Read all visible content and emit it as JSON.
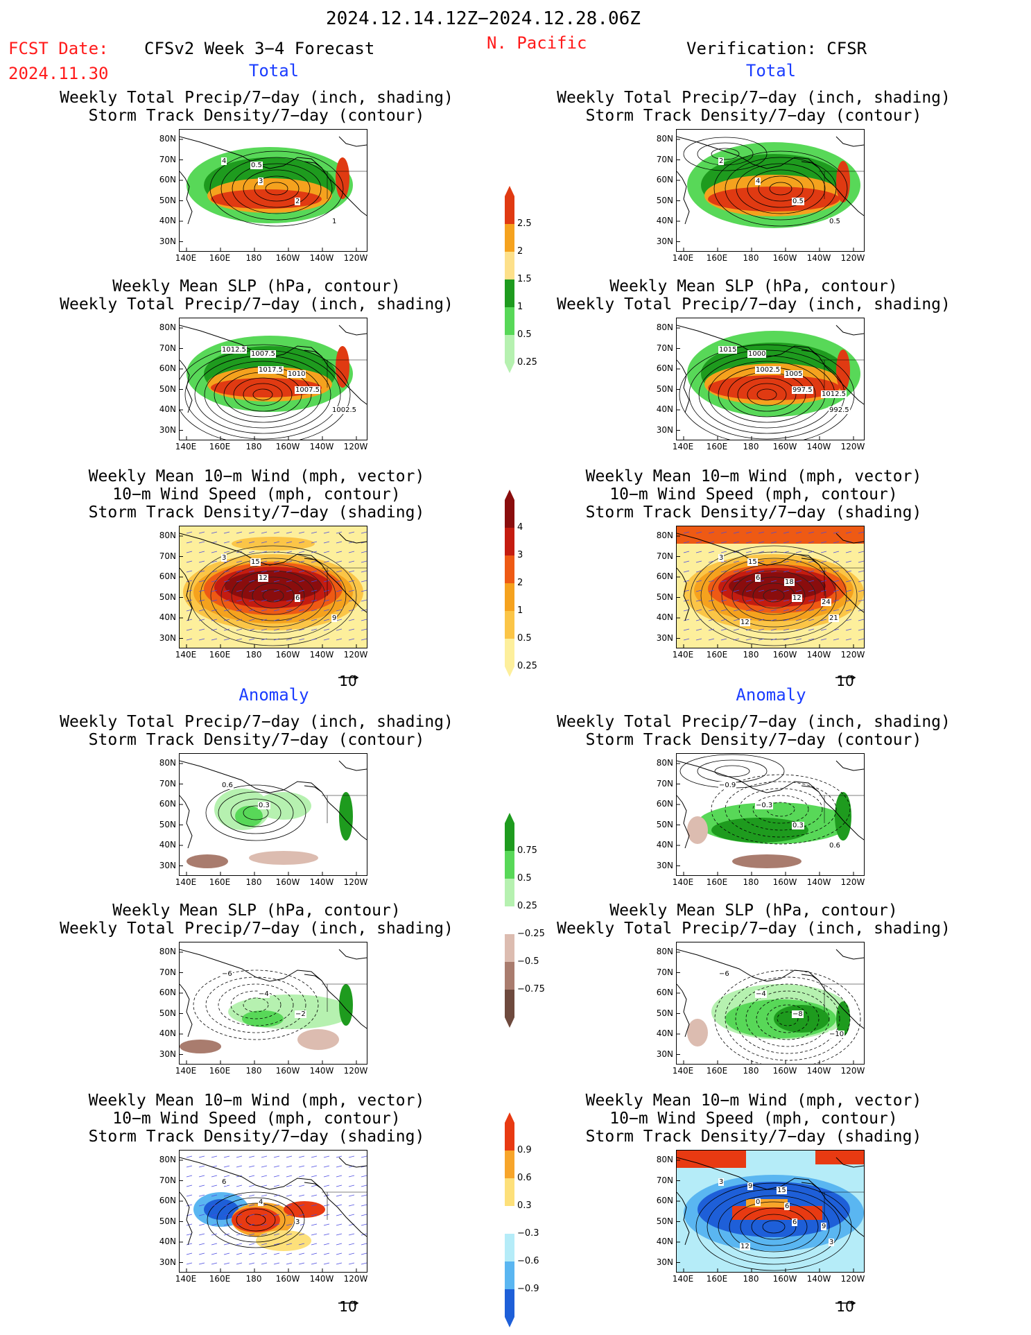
{
  "header": {
    "date_range": "2024.12.14.12Z−2024.12.28.06Z",
    "fcst_label": "FCST Date:",
    "fcst_date": "2024.11.30",
    "model": "CFSv2 Week 3−4 Forecast",
    "region": "N. Pacific",
    "verification": "Verification: CFSR"
  },
  "sections": {
    "total": "Total",
    "anomaly": "Anomaly"
  },
  "panel_titles": {
    "precip_storm": "Weekly Total Precip/7−day (inch, shading)\nStorm Track Density/7−day (contour)",
    "slp_precip": "Weekly Mean SLP (hPa, contour)\nWeekly Total Precip/7−day (inch, shading)",
    "wind_storm": "Weekly Mean 10−m Wind (mph, vector)\n10−m Wind Speed (mph, contour)\nStorm Track Density/7−day (shading)"
  },
  "axes": {
    "lat_ticks": [
      "80N",
      "70N",
      "60N",
      "50N",
      "40N",
      "30N"
    ],
    "lon_ticks": [
      "140E",
      "160E",
      "180",
      "160W",
      "140W",
      "120W"
    ]
  },
  "vector_reference": "10",
  "colorbars": {
    "precip_total": {
      "labels": [
        "2.5",
        "2",
        "1.5",
        "1",
        "0.5",
        "0.25"
      ],
      "colors": [
        "#e03a12",
        "#f5a21e",
        "#fde08a",
        "#1e9b1e",
        "#58d858",
        "#b6f1b0"
      ]
    },
    "storm_total": {
      "labels": [
        "4",
        "3",
        "2",
        "1",
        "0.5",
        "0.25"
      ],
      "colors": [
        "#8a0d0d",
        "#c41c10",
        "#ee5a14",
        "#f5a21e",
        "#fbc547",
        "#fdef9c"
      ]
    },
    "precip_anom": {
      "labels": [
        "0.75",
        "0.5",
        "0.25",
        "−0.25",
        "−0.5",
        "−0.75"
      ],
      "colors": [
        "#1e9b1e",
        "#58d858",
        "#b6f1b0",
        "#ffffff",
        "#dcbcb0",
        "#a97c6e",
        "#6e4a3e"
      ]
    },
    "storm_anom": {
      "labels": [
        "0.9",
        "0.6",
        "0.3",
        "−0.3",
        "−0.6",
        "−0.9"
      ],
      "colors": [
        "#e83a12",
        "#f7a52a",
        "#fde07a",
        "#ffffff",
        "#b5ecf8",
        "#5ab6f1",
        "#1e5fd8"
      ]
    }
  },
  "panels": [
    {
      "id": "fcst-total-precip",
      "contour_labels": [
        "4",
        "3",
        "2",
        "1",
        "0.5"
      ]
    },
    {
      "id": "verif-total-precip",
      "contour_labels": [
        "2",
        "4",
        "0.5",
        "0.5"
      ]
    },
    {
      "id": "fcst-total-slp",
      "contour_labels": [
        "1012.5",
        "1017.5",
        "1007.5",
        "1002.5",
        "1007.5",
        "1010"
      ]
    },
    {
      "id": "verif-total-slp",
      "contour_labels": [
        "1015",
        "1002.5",
        "997.5",
        "992.5",
        "1000",
        "1005",
        "1012.5"
      ]
    },
    {
      "id": "fcst-total-wind",
      "contour_labels": [
        "3",
        "12",
        "6",
        "9",
        "15"
      ]
    },
    {
      "id": "verif-total-wind",
      "contour_labels": [
        "3",
        "6",
        "12",
        "21",
        "15",
        "18",
        "24",
        "12"
      ]
    },
    {
      "id": "fcst-anom-precip",
      "contour_labels": [
        "0.6",
        "0.3"
      ]
    },
    {
      "id": "verif-anom-precip",
      "contour_labels": [
        "−0.9",
        "−0.3",
        "0.3",
        "0.6"
      ]
    },
    {
      "id": "fcst-anom-slp",
      "contour_labels": [
        "−6",
        "−4",
        "−2"
      ]
    },
    {
      "id": "verif-anom-slp",
      "contour_labels": [
        "−6",
        "−4",
        "−8",
        "−10"
      ]
    },
    {
      "id": "fcst-anom-wind",
      "contour_labels": [
        "6",
        "4",
        "3"
      ]
    },
    {
      "id": "verif-anom-wind",
      "contour_labels": [
        "3",
        "0",
        "6",
        "3",
        "9",
        "6",
        "9",
        "12",
        "15"
      ]
    }
  ]
}
